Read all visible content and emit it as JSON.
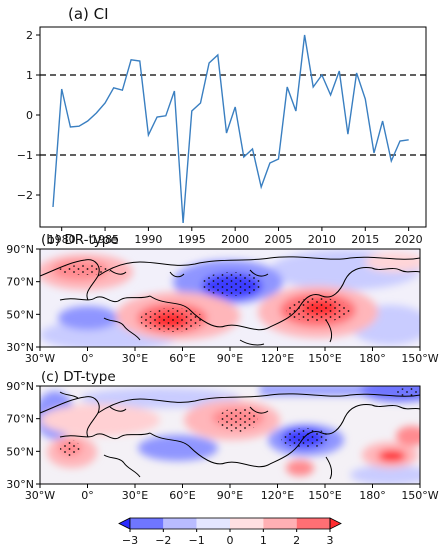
{
  "chart_data": [
    {
      "type": "line",
      "title": "(a) CI",
      "xlabel": "",
      "ylabel": "",
      "xlim": [
        1977.5,
        2022
      ],
      "ylim": [
        -2.8,
        2.2
      ],
      "xticks": [
        1980,
        1985,
        1990,
        1995,
        2000,
        2005,
        2010,
        2015,
        2020
      ],
      "yticks": [
        -2,
        -1,
        0,
        1,
        2
      ],
      "reference_lines": [
        1,
        -1
      ],
      "color": "#3a7fc1",
      "x": [
        1979,
        1980,
        1981,
        1982,
        1983,
        1984,
        1985,
        1986,
        1987,
        1988,
        1989,
        1990,
        1991,
        1992,
        1993,
        1994,
        1995,
        1996,
        1997,
        1998,
        1999,
        2000,
        2001,
        2002,
        2003,
        2004,
        2005,
        2006,
        2007,
        2008,
        2009,
        2010,
        2011,
        2012,
        2013,
        2014,
        2015,
        2016,
        2017,
        2018,
        2019,
        2020
      ],
      "y": [
        -2.3,
        0.65,
        -0.3,
        -0.28,
        -0.15,
        0.05,
        0.3,
        0.68,
        0.62,
        1.38,
        1.35,
        -0.5,
        -0.05,
        -0.02,
        0.6,
        -2.7,
        0.1,
        0.3,
        1.3,
        1.5,
        -0.45,
        0.2,
        -1.05,
        -0.85,
        -1.8,
        -1.2,
        -1.1,
        0.7,
        0.1,
        2.0,
        0.7,
        1.0,
        0.5,
        1.1,
        -0.48,
        1.05,
        0.4,
        -0.95,
        -0.15,
        -1.15,
        -0.65,
        -0.62
      ]
    },
    {
      "type": "heatmap",
      "title": "(b) DR-type",
      "xticks": [
        "30°W",
        "0°",
        "30°E",
        "60°E",
        "90°E",
        "120°E",
        "150°E",
        "180°",
        "150°W"
      ],
      "yticks": [
        "90°N",
        "70°N",
        "50°N",
        "30°N"
      ]
    },
    {
      "type": "heatmap",
      "title": "(c) DT-type",
      "xticks": [
        "30°W",
        "0°",
        "30°E",
        "60°E",
        "90°E",
        "120°E",
        "150°E",
        "180°",
        "150°W"
      ],
      "yticks": [
        "90°N",
        "70°N",
        "50°N",
        "30°N"
      ]
    }
  ],
  "colorbar": {
    "labels": [
      "−3",
      "−2",
      "−1",
      "0",
      "1",
      "2",
      "3"
    ],
    "colors": [
      "#2b2bff",
      "#6f76ff",
      "#b9bcff",
      "#e4e6ff",
      "#ffe0e2",
      "#ffb0b4",
      "#ff6f74",
      "#ff2b2f"
    ]
  }
}
